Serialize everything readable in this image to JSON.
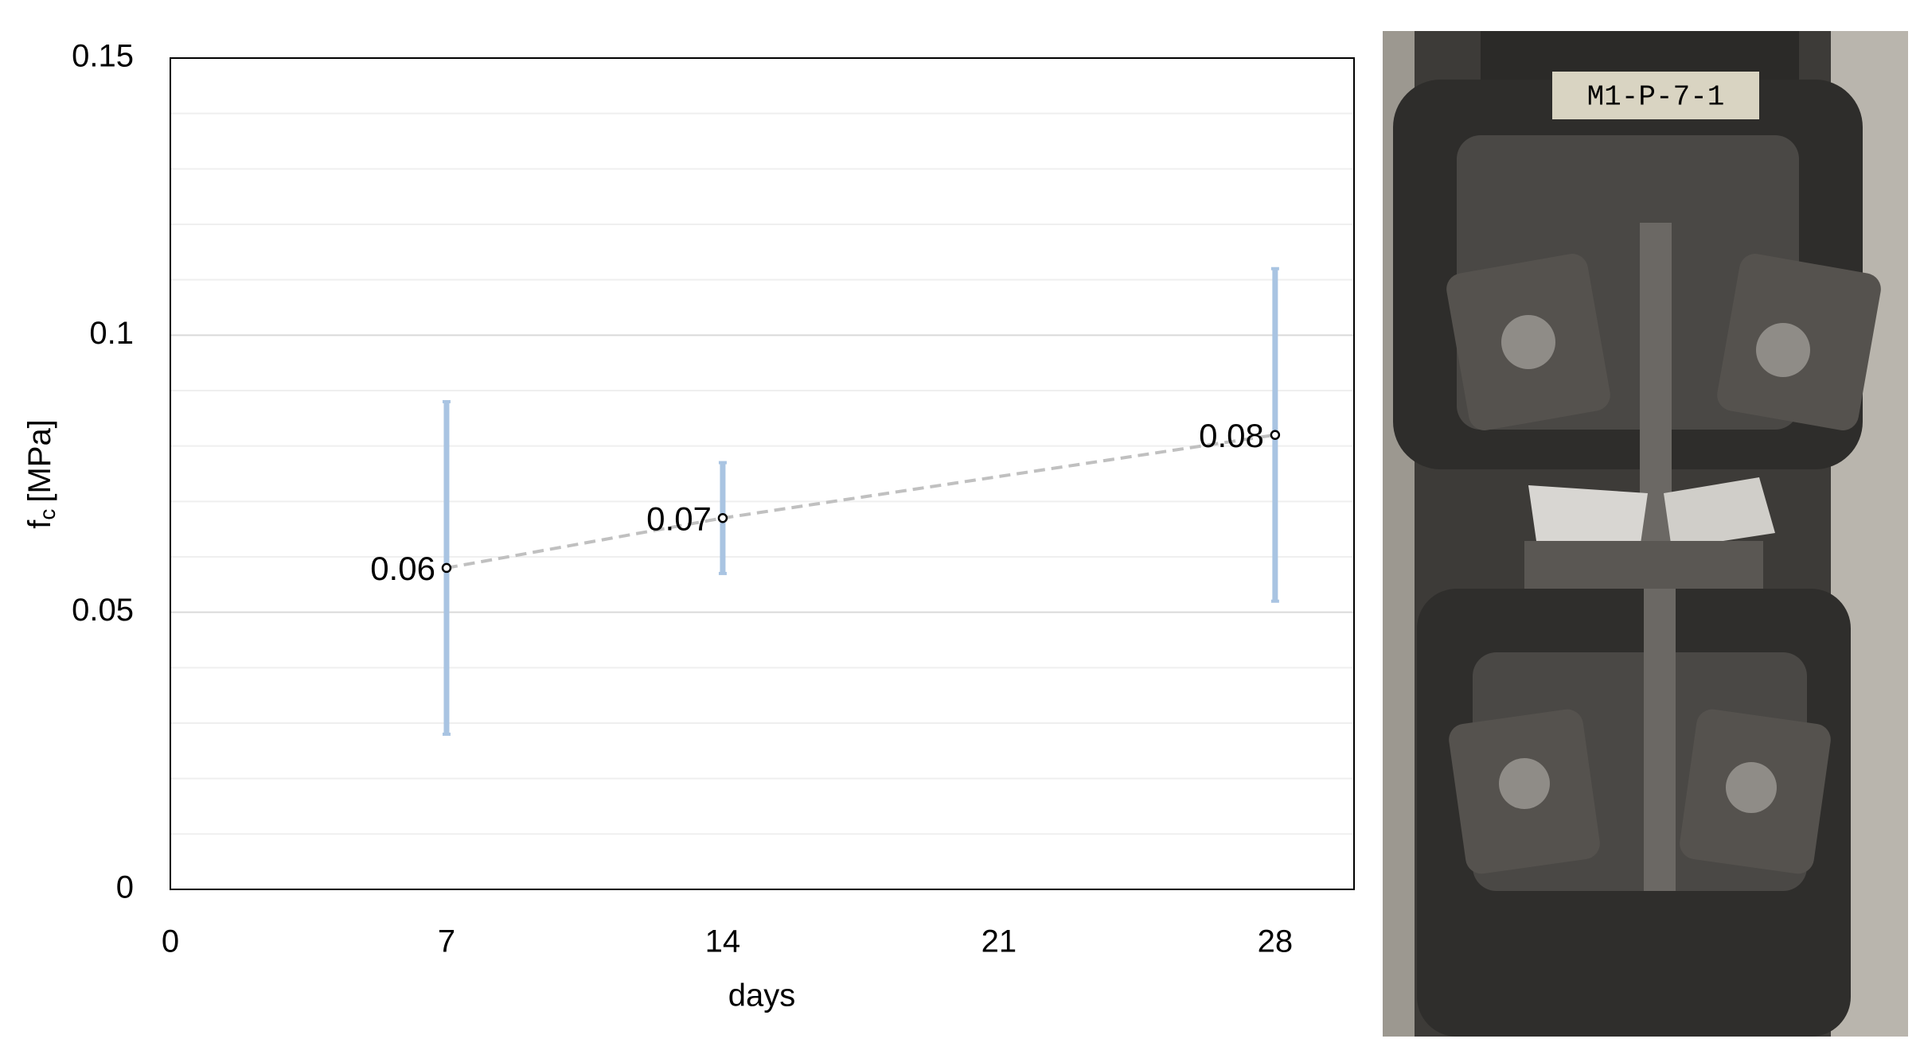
{
  "chart_data": {
    "type": "scatter",
    "xlabel": "days",
    "ylabel": {
      "main": "f",
      "sub": "c",
      "unit": "[MPa]"
    },
    "x": [
      7,
      14,
      28
    ],
    "values": [
      0.058,
      0.067,
      0.082
    ],
    "value_labels": [
      "0.06",
      "0.07",
      "0.08"
    ],
    "errors": [
      0.03,
      0.01,
      0.03
    ],
    "color": "#000000",
    "line_color": "#c0c0c0",
    "error_color": "#a9c4e2",
    "xlim": [
      0,
      30
    ],
    "xticks": [
      0,
      7,
      14,
      21,
      28
    ],
    "ylim": [
      0,
      0.15
    ],
    "yticks": [
      0,
      0.05,
      0.1,
      0.15
    ],
    "minor_yticks": [
      0.01,
      0.02,
      0.03,
      0.04,
      0.06,
      0.07,
      0.08,
      0.09,
      0.11,
      0.12,
      0.13,
      0.14
    ],
    "grid": true
  },
  "photo": {
    "label": "M1-P-7-1"
  }
}
